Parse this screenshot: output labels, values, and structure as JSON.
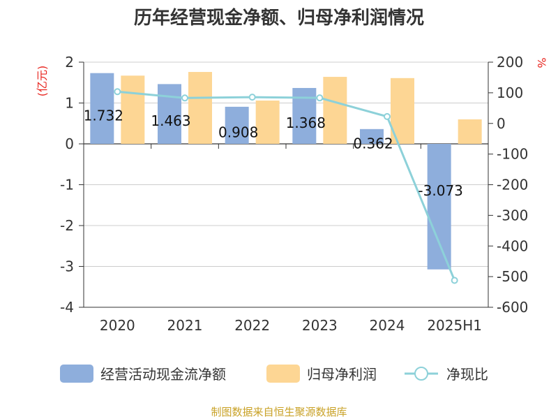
{
  "chart_data": {
    "type": "bar",
    "title": "历年经营现金净额、归母净利润情况",
    "categories": [
      "2020",
      "2021",
      "2022",
      "2023",
      "2024",
      "2025H1"
    ],
    "y_left_unit": "(亿元)",
    "y_right_unit": "%",
    "y_left_range": [
      -4,
      2
    ],
    "y_left_ticks": [
      "2",
      "1",
      "0",
      "-1",
      "-2",
      "-3",
      "-4"
    ],
    "y_right_range": [
      -600,
      200
    ],
    "y_right_ticks": [
      "200",
      "100",
      "0",
      "-100",
      "-200",
      "-300",
      "-400",
      "-500",
      "-600"
    ],
    "grid": true,
    "legend_position": "bottom",
    "series": [
      {
        "name": "经营活动现金流净额",
        "type": "bar",
        "axis": "left",
        "color": "#8eaedc",
        "values": [
          1.732,
          1.463,
          0.908,
          1.368,
          0.362,
          -3.073
        ],
        "labels": [
          "1.732",
          "1.463",
          "0.908",
          "1.368",
          "0.362",
          "-3.073"
        ]
      },
      {
        "name": "归母净利润",
        "type": "bar",
        "axis": "left",
        "color": "#fdd694",
        "values": [
          1.67,
          1.76,
          1.06,
          1.64,
          1.61,
          0.6
        ]
      },
      {
        "name": "净现比",
        "type": "line",
        "axis": "right",
        "color": "#8dd1d9",
        "values": [
          103.7,
          83.1,
          85.7,
          83.4,
          22.5,
          -512.2
        ]
      }
    ],
    "source": "制图数据来自恒生聚源数据库"
  }
}
